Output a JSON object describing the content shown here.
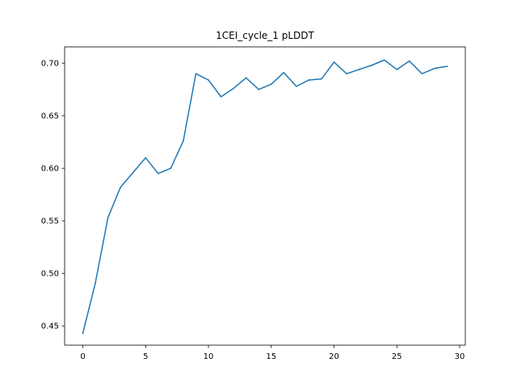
{
  "chart_data": {
    "type": "line",
    "title": "1CEI_cycle_1 pLDDT",
    "xlabel": "",
    "ylabel": "",
    "xlim": [
      -1.45,
      30.45
    ],
    "ylim": [
      0.4317,
      0.7155
    ],
    "xticks": [
      0,
      5,
      10,
      15,
      20,
      25,
      30
    ],
    "xtick_labels": [
      "0",
      "5",
      "10",
      "15",
      "20",
      "25",
      "30"
    ],
    "yticks": [
      0.45,
      0.5,
      0.55,
      0.6,
      0.65,
      0.7
    ],
    "ytick_labels": [
      "0.45",
      "0.50",
      "0.55",
      "0.60",
      "0.65",
      "0.70"
    ],
    "grid": false,
    "series": [
      {
        "color": "#1f77b4",
        "x": [
          0,
          1,
          2,
          3,
          4,
          5,
          6,
          7,
          8,
          9,
          10,
          11,
          12,
          13,
          14,
          15,
          16,
          17,
          18,
          19,
          20,
          21,
          22,
          23,
          24,
          25,
          26,
          27,
          28,
          29
        ],
        "values": [
          0.443,
          0.491,
          0.553,
          0.582,
          0.596,
          0.61,
          0.595,
          0.6,
          0.626,
          0.69,
          0.684,
          0.668,
          0.676,
          0.686,
          0.675,
          0.68,
          0.691,
          0.678,
          0.684,
          0.685,
          0.701,
          0.69,
          0.694,
          0.698,
          0.703,
          0.694,
          0.702,
          0.69,
          0.695,
          0.697
        ]
      }
    ]
  }
}
